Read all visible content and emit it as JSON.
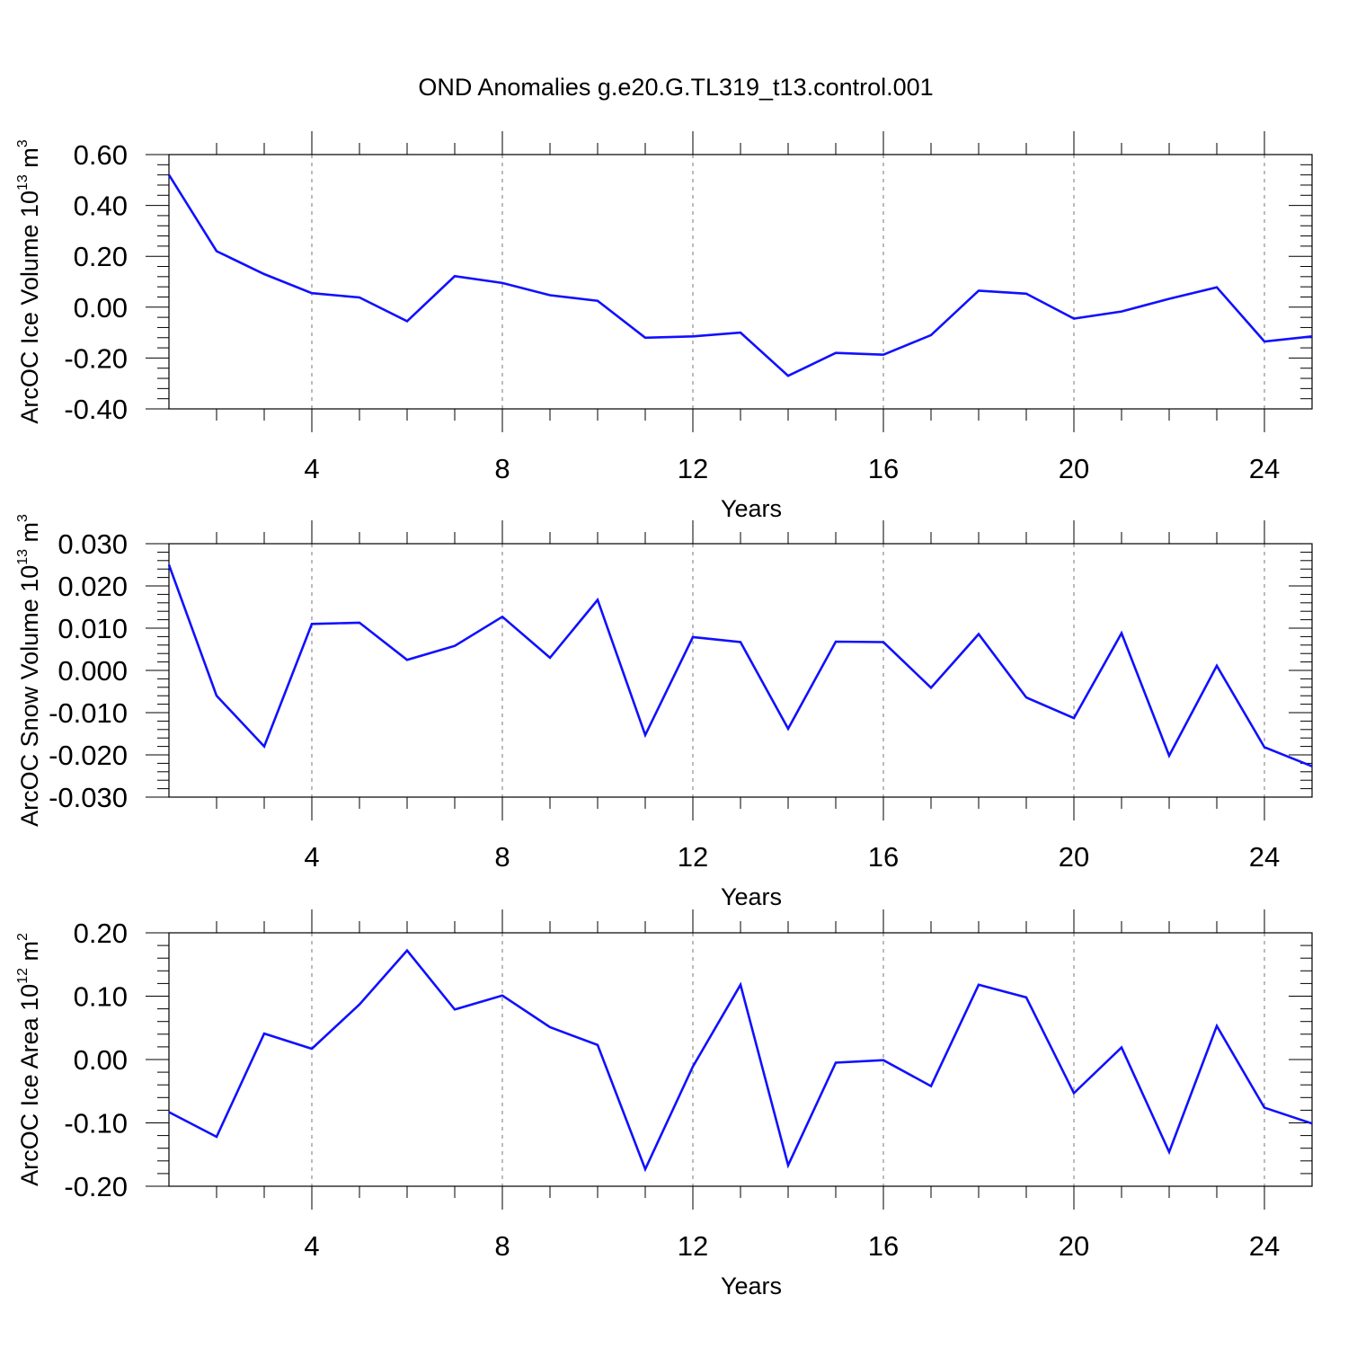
{
  "title": "OND Anomalies g.e20.G.TL319_t13.control.001",
  "colors": {
    "line": "#1010ff",
    "axis": "#000000",
    "grid": "#777777"
  },
  "chart_data": [
    {
      "type": "line",
      "ylabel": "ArcOC Ice Volume",
      "ylabel_unit_base": "10",
      "ylabel_unit_exp": "13",
      "ylabel_unit_sym": "m",
      "ylabel_unit_pow": "3",
      "xlabel": "Years",
      "xlim": [
        1,
        25
      ],
      "ylim": [
        -0.4,
        0.6
      ],
      "x_ticks": [
        4,
        8,
        12,
        16,
        20,
        24
      ],
      "y_ticks": [
        -0.4,
        -0.2,
        0.0,
        0.2,
        0.4,
        0.6
      ],
      "y_tick_labels": [
        "-0.40",
        "-0.20",
        "0.00",
        "0.20",
        "0.40",
        "0.60"
      ],
      "grid": "vertical-dashed",
      "x": [
        1,
        2,
        3,
        4,
        5,
        6,
        7,
        8,
        9,
        10,
        11,
        12,
        13,
        14,
        15,
        16,
        17,
        18,
        19,
        20,
        21,
        22,
        23,
        24,
        25
      ],
      "values": [
        0.52,
        0.22,
        0.13,
        0.055,
        0.038,
        -0.055,
        0.122,
        0.095,
        0.047,
        0.025,
        -0.12,
        -0.115,
        -0.1,
        -0.27,
        -0.18,
        -0.187,
        -0.11,
        0.065,
        0.053,
        -0.045,
        -0.017,
        0.033,
        0.078,
        -0.135,
        -0.115
      ]
    },
    {
      "type": "line",
      "ylabel": "ArcOC Snow Volume",
      "ylabel_unit_base": "10",
      "ylabel_unit_exp": "13",
      "ylabel_unit_sym": "m",
      "ylabel_unit_pow": "3",
      "xlabel": "Years",
      "xlim": [
        1,
        25
      ],
      "ylim": [
        -0.03,
        0.03
      ],
      "x_ticks": [
        4,
        8,
        12,
        16,
        20,
        24
      ],
      "y_ticks": [
        -0.03,
        -0.02,
        -0.01,
        0.0,
        0.01,
        0.02,
        0.03
      ],
      "y_tick_labels": [
        "-0.030",
        "-0.020",
        "-0.010",
        "0.000",
        "0.010",
        "0.020",
        "0.030"
      ],
      "grid": "vertical-dashed",
      "x": [
        1,
        2,
        3,
        4,
        5,
        6,
        7,
        8,
        9,
        10,
        11,
        12,
        13,
        14,
        15,
        16,
        17,
        18,
        19,
        20,
        21,
        22,
        23,
        24,
        25
      ],
      "values": [
        0.025,
        -0.006,
        -0.018,
        0.011,
        0.0113,
        0.0025,
        0.0058,
        0.0127,
        0.003,
        0.0167,
        -0.0153,
        0.0079,
        0.0067,
        -0.0138,
        0.0068,
        0.0067,
        -0.0041,
        0.0086,
        -0.0064,
        -0.0113,
        0.0088,
        -0.0202,
        0.0011,
        -0.0182,
        -0.0227
      ]
    },
    {
      "type": "line",
      "ylabel": "ArcOC Ice Area",
      "ylabel_unit_base": "10",
      "ylabel_unit_exp": "12",
      "ylabel_unit_sym": "m",
      "ylabel_unit_pow": "2",
      "xlabel": "Years",
      "xlim": [
        1,
        25
      ],
      "ylim": [
        -0.2,
        0.2
      ],
      "x_ticks": [
        4,
        8,
        12,
        16,
        20,
        24
      ],
      "y_ticks": [
        -0.2,
        -0.1,
        0.0,
        0.1,
        0.2
      ],
      "y_tick_labels": [
        "-0.20",
        "-0.10",
        "0.00",
        "0.10",
        "0.20"
      ],
      "grid": "vertical-dashed",
      "x": [
        1,
        2,
        3,
        4,
        5,
        6,
        7,
        8,
        9,
        10,
        11,
        12,
        13,
        14,
        15,
        16,
        17,
        18,
        19,
        20,
        21,
        22,
        23,
        24,
        25
      ],
      "values": [
        -0.083,
        -0.122,
        0.041,
        0.017,
        0.087,
        0.172,
        0.079,
        0.101,
        0.051,
        0.023,
        -0.173,
        -0.011,
        0.118,
        -0.167,
        -0.005,
        -0.001,
        -0.042,
        0.118,
        0.098,
        -0.053,
        0.019,
        -0.146,
        0.053,
        -0.076,
        -0.101
      ]
    }
  ]
}
